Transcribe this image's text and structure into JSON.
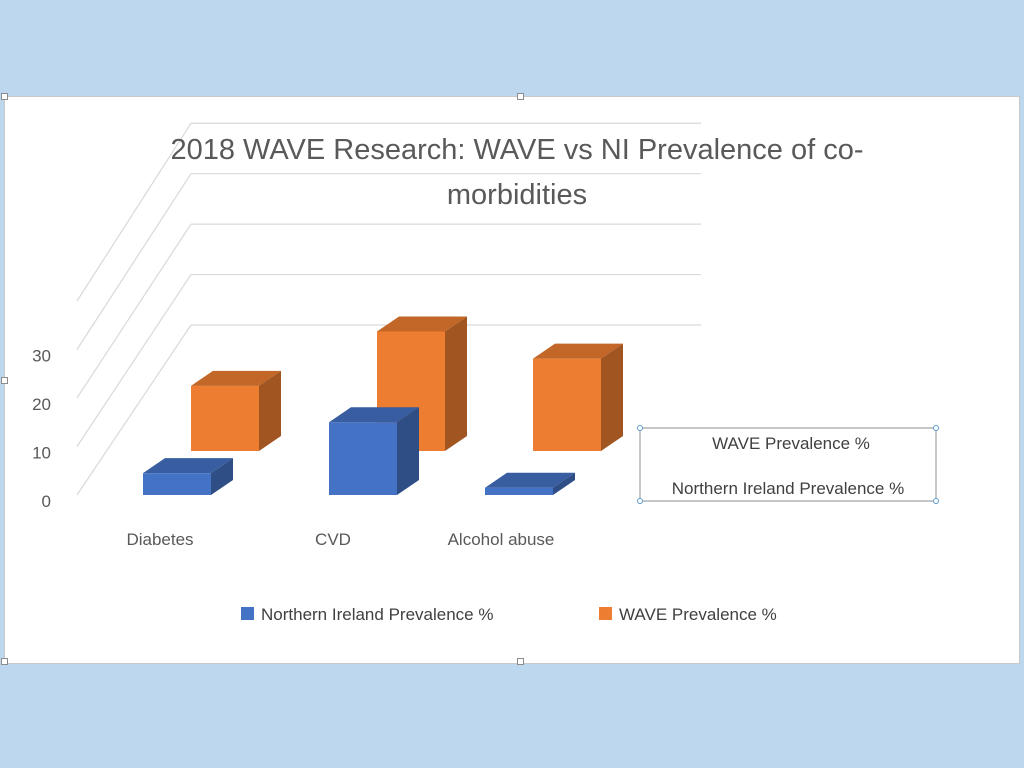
{
  "chart_data": {
    "type": "bar",
    "title_line1": "2018 WAVE Research: WAVE vs NI Prevalence of co-",
    "title_line2": "morbidities",
    "categories": [
      "Diabetes",
      "CVD",
      "Alcohol abuse"
    ],
    "series": [
      {
        "name": "Northern Ireland Prevalence %",
        "values": [
          4.5,
          15,
          1.5
        ],
        "color": "#4472c4"
      },
      {
        "name": "WAVE Prevalence %",
        "values": [
          12,
          22,
          17
        ],
        "color": "#ed7d31"
      }
    ],
    "ylim": [
      0,
      40
    ],
    "yticks": [
      "0",
      "10",
      "20",
      "30"
    ],
    "grid": true,
    "legend": "bottom",
    "depth_label_top": "WAVE Prevalence %",
    "depth_label_bottom": "Northern Ireland Prevalence %"
  }
}
